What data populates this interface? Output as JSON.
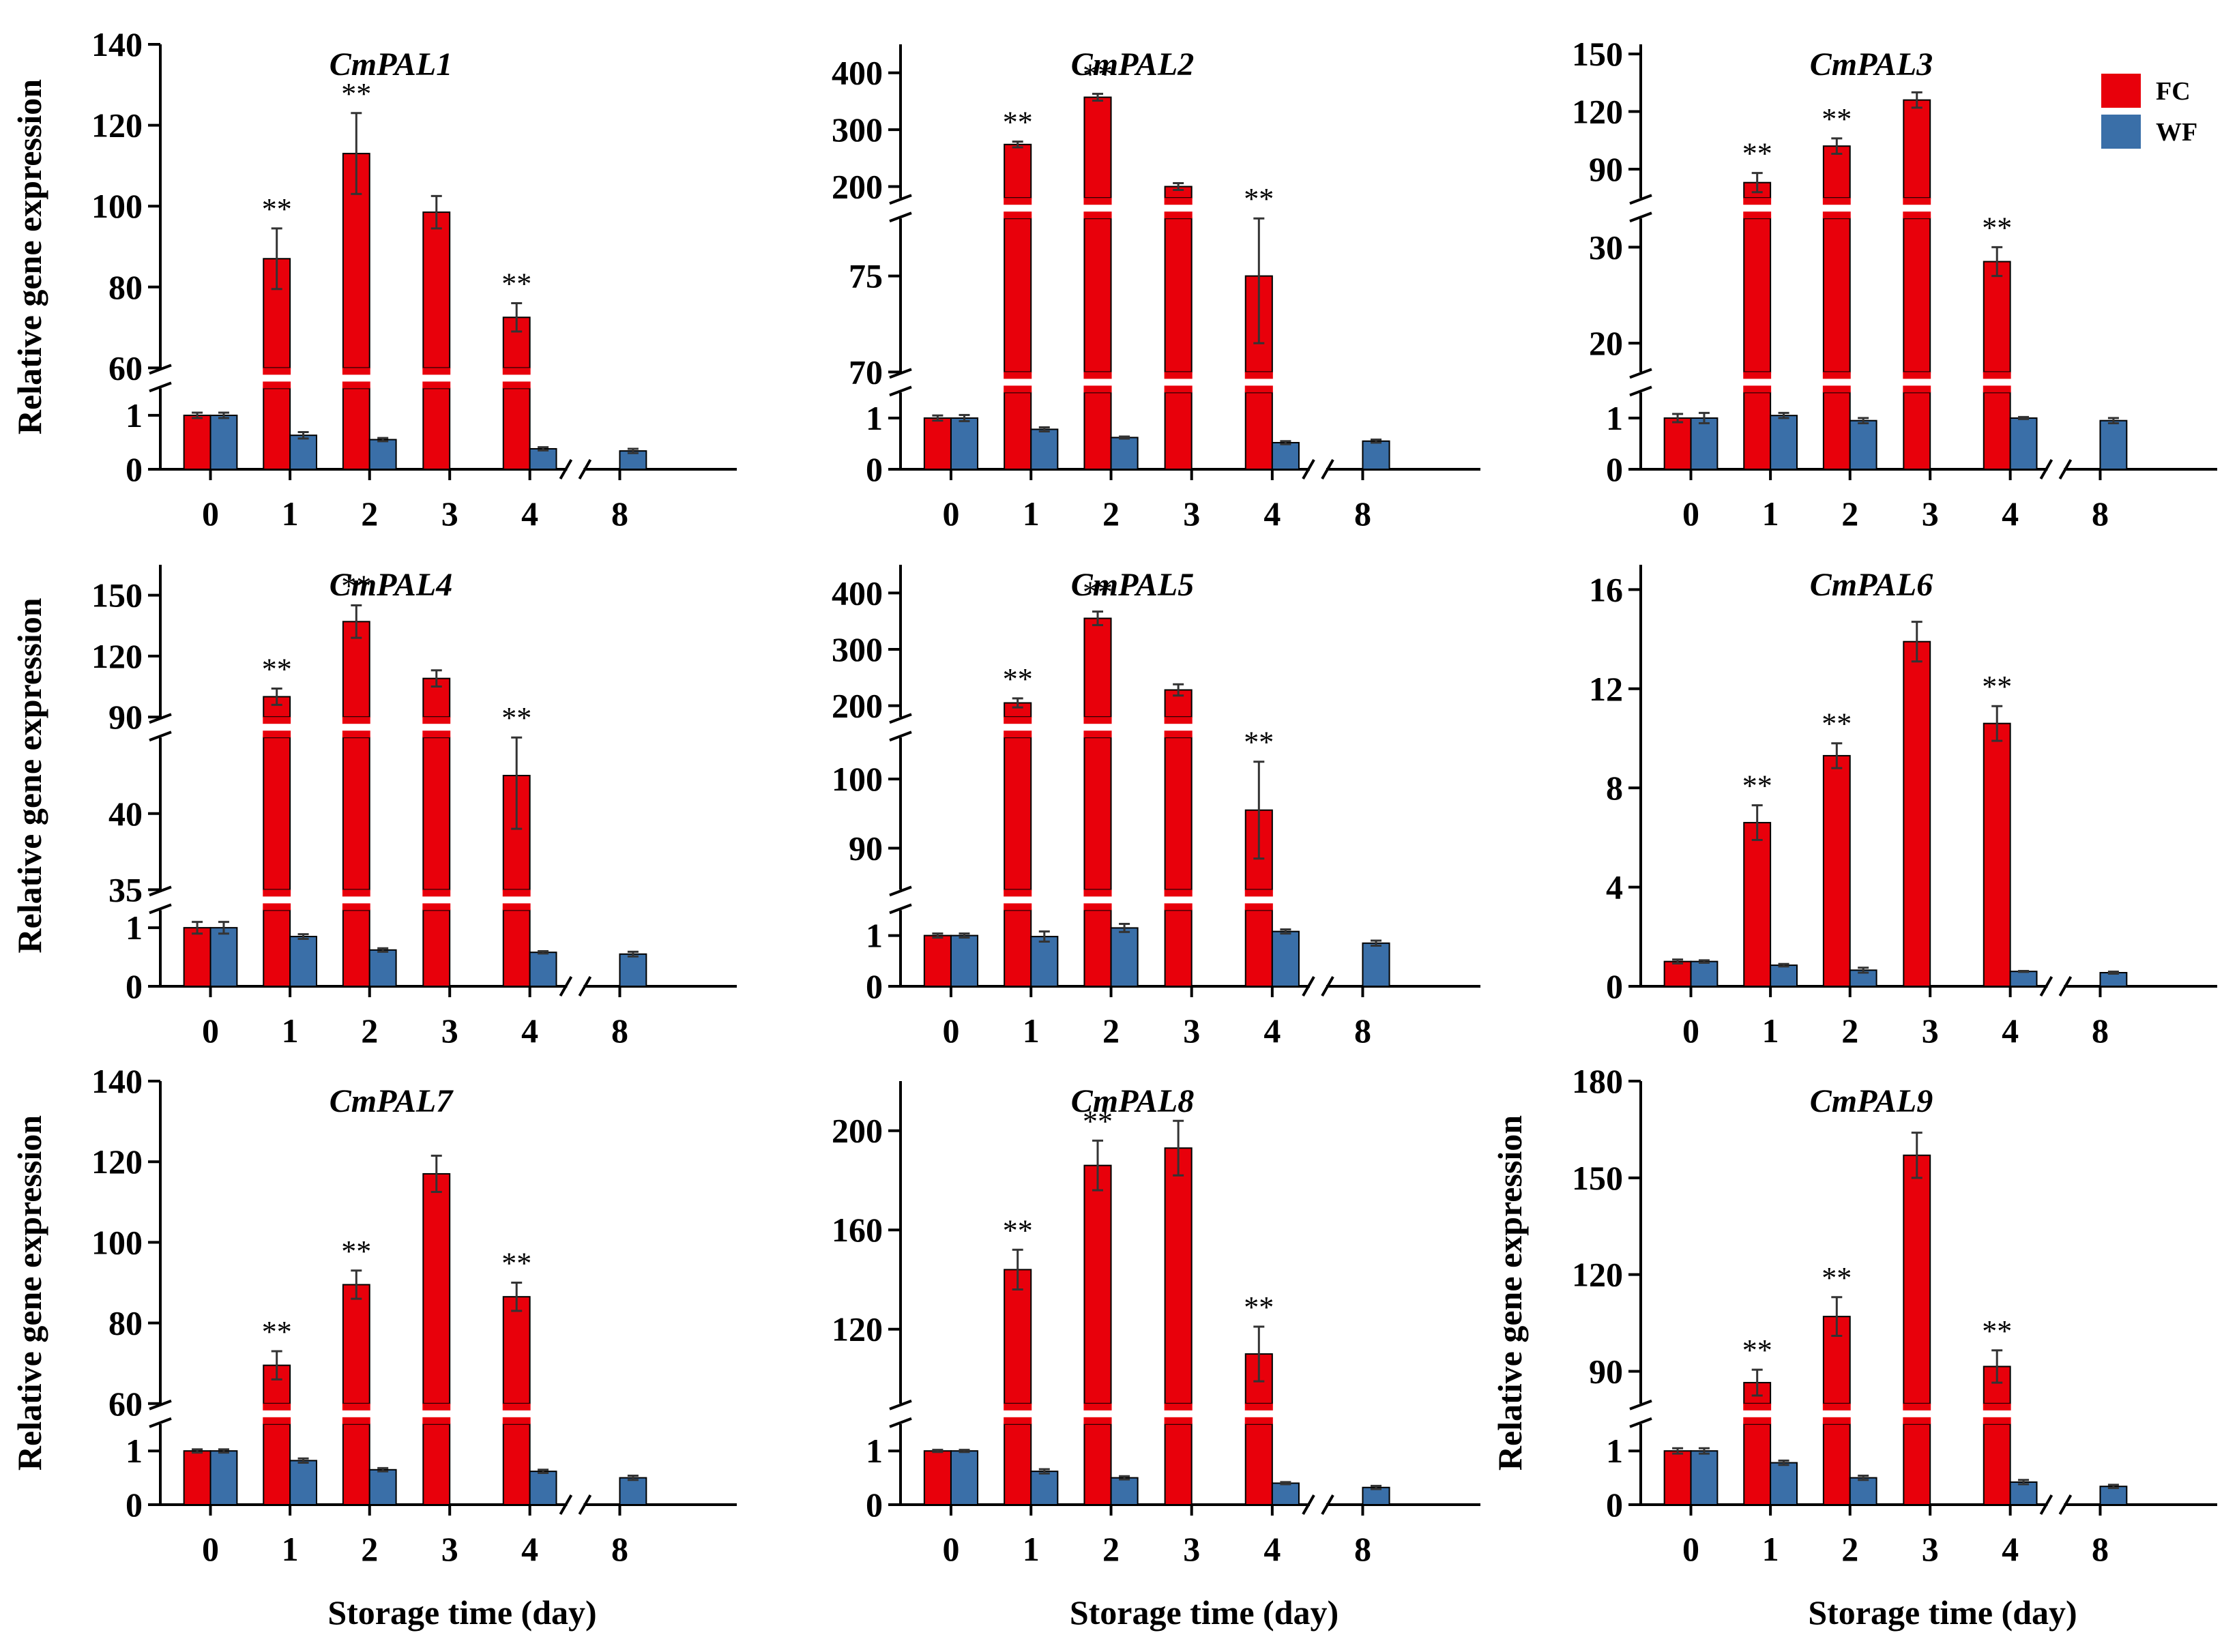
{
  "colors": {
    "FC": "#e8000b",
    "WF": "#3a6fa8",
    "axis": "#000000"
  },
  "legend": [
    {
      "name": "FC",
      "color": "#e8000b"
    },
    {
      "name": "WF",
      "color": "#3a6fa8"
    }
  ],
  "chart_data": [
    {
      "type": "bar",
      "title": "CmPAL1",
      "xlabel": "",
      "ylabel": "Relative gene expression",
      "categories": [
        "0",
        "1",
        "2",
        "3",
        "4",
        "8"
      ],
      "broken_x_between": [
        "4",
        "8"
      ],
      "y_segments": [
        {
          "range": [
            0,
            1.5
          ],
          "ticks": [
            "0",
            "1"
          ]
        },
        {
          "range": [
            60,
            140
          ],
          "ticks": [
            "60",
            "80",
            "100",
            "120",
            "140"
          ]
        }
      ],
      "series": [
        {
          "name": "FC",
          "values": [
            1.0,
            87,
            113,
            98.5,
            72.5,
            null
          ],
          "errors": [
            0.05,
            7.5,
            10,
            4,
            3.5,
            null
          ]
        },
        {
          "name": "WF",
          "values": [
            1.0,
            0.63,
            0.55,
            null,
            0.38,
            0.34
          ],
          "errors": [
            0.05,
            0.06,
            0.03,
            null,
            0.03,
            0.04
          ]
        }
      ],
      "significance": [
        "",
        "**",
        "**",
        "",
        "**",
        ""
      ]
    },
    {
      "type": "bar",
      "title": "CmPAL2",
      "xlabel": "",
      "ylabel": "",
      "categories": [
        "0",
        "1",
        "2",
        "3",
        "4",
        "8"
      ],
      "broken_x_between": [
        "4",
        "8"
      ],
      "y_segments": [
        {
          "range": [
            0,
            1.5
          ],
          "ticks": [
            "0",
            "1"
          ]
        },
        {
          "range": [
            70,
            78
          ],
          "ticks": [
            "70",
            "75"
          ]
        },
        {
          "range": [
            180,
            450
          ],
          "ticks": [
            "200",
            "300",
            "400"
          ]
        }
      ],
      "series": [
        {
          "name": "FC",
          "values": [
            1.0,
            274,
            357,
            200,
            75.0,
            null
          ],
          "errors": [
            0.05,
            5,
            6,
            6,
            3.5,
            null
          ]
        },
        {
          "name": "WF",
          "values": [
            1.0,
            0.78,
            0.62,
            null,
            0.52,
            0.55
          ],
          "errors": [
            0.06,
            0.04,
            0.02,
            null,
            0.03,
            0.03
          ]
        }
      ],
      "significance": [
        "",
        "**",
        "**",
        "",
        "**",
        ""
      ]
    },
    {
      "type": "bar",
      "title": "CmPAL3",
      "xlabel": "",
      "ylabel": "",
      "categories": [
        "0",
        "1",
        "2",
        "3",
        "4",
        "8"
      ],
      "broken_x_between": [
        "4",
        "8"
      ],
      "y_segments": [
        {
          "range": [
            0,
            1.5
          ],
          "ticks": [
            "0",
            "1"
          ]
        },
        {
          "range": [
            17,
            33
          ],
          "ticks": [
            "20",
            "30"
          ]
        },
        {
          "range": [
            75,
            155
          ],
          "ticks": [
            "90",
            "120",
            "150"
          ]
        }
      ],
      "series": [
        {
          "name": "FC",
          "values": [
            1.0,
            83,
            102,
            126,
            28.5,
            null
          ],
          "errors": [
            0.08,
            5,
            4,
            4,
            1.5,
            null
          ]
        },
        {
          "name": "WF",
          "values": [
            1.0,
            1.05,
            0.95,
            null,
            1.0,
            0.95
          ],
          "errors": [
            0.1,
            0.05,
            0.05,
            null,
            0.02,
            0.05
          ]
        }
      ],
      "significance": [
        "",
        "**",
        "**",
        "",
        "**",
        ""
      ]
    },
    {
      "type": "bar",
      "title": "CmPAL4",
      "xlabel": "",
      "ylabel": "Relative gene expression",
      "categories": [
        "0",
        "1",
        "2",
        "3",
        "4",
        "8"
      ],
      "broken_x_between": [
        "4",
        "8"
      ],
      "y_segments": [
        {
          "range": [
            0,
            1.3
          ],
          "ticks": [
            "0",
            "1"
          ]
        },
        {
          "range": [
            35,
            45
          ],
          "ticks": [
            "35",
            "40"
          ]
        },
        {
          "range": [
            90,
            165
          ],
          "ticks": [
            "90",
            "120",
            "150"
          ]
        }
      ],
      "series": [
        {
          "name": "FC",
          "values": [
            1.0,
            100,
            137,
            109,
            42.5,
            null
          ],
          "errors": [
            0.1,
            4,
            8,
            4,
            3.5,
            null
          ]
        },
        {
          "name": "WF",
          "values": [
            1.0,
            0.85,
            0.62,
            null,
            0.58,
            0.55
          ],
          "errors": [
            0.1,
            0.04,
            0.03,
            null,
            0.02,
            0.04
          ]
        }
      ],
      "significance": [
        "",
        "**",
        "**",
        "",
        "**",
        ""
      ]
    },
    {
      "type": "bar",
      "title": "CmPAL5",
      "xlabel": "",
      "ylabel": "",
      "categories": [
        "0",
        "1",
        "2",
        "3",
        "4",
        "8"
      ],
      "broken_x_between": [
        "4",
        "8"
      ],
      "y_segments": [
        {
          "range": [
            0,
            1.5
          ],
          "ticks": [
            "0",
            "1"
          ]
        },
        {
          "range": [
            84,
            106
          ],
          "ticks": [
            "90",
            "100"
          ]
        },
        {
          "range": [
            180,
            450
          ],
          "ticks": [
            "200",
            "300",
            "400"
          ]
        }
      ],
      "series": [
        {
          "name": "FC",
          "values": [
            1.0,
            205,
            355,
            228,
            95.5,
            null
          ],
          "errors": [
            0.04,
            8,
            12,
            10,
            7,
            null
          ]
        },
        {
          "name": "WF",
          "values": [
            1.0,
            0.98,
            1.15,
            null,
            1.08,
            0.85
          ],
          "errors": [
            0.04,
            0.1,
            0.08,
            null,
            0.04,
            0.05
          ]
        }
      ],
      "significance": [
        "",
        "**",
        "**",
        "",
        "**",
        ""
      ]
    },
    {
      "type": "bar",
      "title": "CmPAL6",
      "xlabel": "",
      "ylabel": "",
      "categories": [
        "0",
        "1",
        "2",
        "3",
        "4",
        "8"
      ],
      "broken_x_between": [
        "4",
        "8"
      ],
      "y_segments": [
        {
          "range": [
            0,
            17
          ],
          "ticks": [
            "0",
            "4",
            "8",
            "12",
            "16"
          ]
        }
      ],
      "series": [
        {
          "name": "FC",
          "values": [
            1.0,
            6.6,
            9.3,
            13.9,
            10.6,
            null
          ],
          "errors": [
            0.08,
            0.7,
            0.5,
            0.8,
            0.7,
            null
          ]
        },
        {
          "name": "WF",
          "values": [
            1.0,
            0.85,
            0.65,
            null,
            0.6,
            0.55
          ],
          "errors": [
            0.05,
            0.05,
            0.1,
            null,
            0.02,
            0.04
          ]
        }
      ],
      "significance": [
        "",
        "**",
        "**",
        "",
        "**",
        ""
      ]
    },
    {
      "type": "bar",
      "title": "CmPAL7",
      "xlabel": "Storage time (day)",
      "ylabel": "Relative gene expression",
      "categories": [
        "0",
        "1",
        "2",
        "3",
        "4",
        "8"
      ],
      "broken_x_between": [
        "4",
        "8"
      ],
      "y_segments": [
        {
          "range": [
            0,
            1.5
          ],
          "ticks": [
            "0",
            "1"
          ]
        },
        {
          "range": [
            60,
            140
          ],
          "ticks": [
            "60",
            "80",
            "100",
            "120",
            "140"
          ]
        }
      ],
      "series": [
        {
          "name": "FC",
          "values": [
            1.0,
            69.5,
            89.5,
            117,
            86.5,
            null
          ],
          "errors": [
            0.03,
            3.5,
            3.5,
            4.5,
            3.5,
            null
          ]
        },
        {
          "name": "WF",
          "values": [
            1.0,
            0.82,
            0.65,
            null,
            0.62,
            0.5
          ],
          "errors": [
            0.03,
            0.04,
            0.03,
            null,
            0.03,
            0.04
          ]
        }
      ],
      "significance": [
        "",
        "**",
        "**",
        "",
        "**",
        ""
      ]
    },
    {
      "type": "bar",
      "title": "CmPAL8",
      "xlabel": "Storage time (day)",
      "ylabel": "",
      "categories": [
        "0",
        "1",
        "2",
        "3",
        "4",
        "8"
      ],
      "broken_x_between": [
        "4",
        "8"
      ],
      "y_segments": [
        {
          "range": [
            0,
            1.5
          ],
          "ticks": [
            "0",
            "1"
          ]
        },
        {
          "range": [
            90,
            220
          ],
          "ticks": [
            "120",
            "160",
            "200"
          ]
        }
      ],
      "series": [
        {
          "name": "FC",
          "values": [
            1.0,
            144,
            186,
            193,
            110,
            null
          ],
          "errors": [
            0.02,
            8,
            10,
            11,
            11,
            null
          ]
        },
        {
          "name": "WF",
          "values": [
            1.0,
            0.62,
            0.5,
            null,
            0.4,
            0.32
          ],
          "errors": [
            0.02,
            0.04,
            0.03,
            null,
            0.02,
            0.03
          ]
        }
      ],
      "significance": [
        "",
        "**",
        "**",
        "",
        "**",
        ""
      ]
    },
    {
      "type": "bar",
      "title": "CmPAL9",
      "xlabel": "Storage time (day)",
      "ylabel": "Relative gene expression",
      "categories": [
        "0",
        "1",
        "2",
        "3",
        "4",
        "8"
      ],
      "broken_x_between": [
        "4",
        "8"
      ],
      "y_segments": [
        {
          "range": [
            0,
            1.5
          ],
          "ticks": [
            "0",
            "1"
          ]
        },
        {
          "range": [
            80,
            180
          ],
          "ticks": [
            "90",
            "120",
            "150",
            "180"
          ]
        }
      ],
      "series": [
        {
          "name": "FC",
          "values": [
            1.0,
            86.5,
            107,
            157,
            91.5,
            null
          ],
          "errors": [
            0.05,
            4,
            6,
            7,
            5,
            null
          ]
        },
        {
          "name": "WF",
          "values": [
            1.0,
            0.78,
            0.5,
            null,
            0.42,
            0.34
          ],
          "errors": [
            0.05,
            0.04,
            0.04,
            null,
            0.04,
            0.03
          ]
        }
      ],
      "significance": [
        "",
        "**",
        "**",
        "",
        "**",
        ""
      ]
    }
  ]
}
